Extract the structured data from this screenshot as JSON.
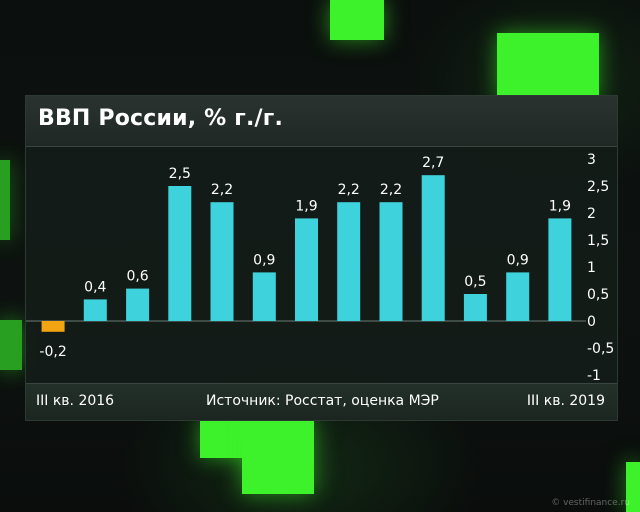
{
  "title": "ВВП России, % г./г.",
  "footer": {
    "left": "III кв. 2016",
    "center": "Источник: Росстат, оценка МЭР",
    "right": "III кв. 2019"
  },
  "watermark": "© vestifinance.ru",
  "chart_data": {
    "type": "bar",
    "categories": [
      "III кв. 2016",
      "",
      "",
      "",
      "",
      "",
      "",
      "",
      "",
      "",
      "",
      "",
      "III кв. 2019"
    ],
    "values": [
      -0.2,
      0.4,
      0.6,
      2.5,
      2.2,
      0.9,
      1.9,
      2.2,
      2.2,
      2.7,
      0.5,
      0.9,
      1.9
    ],
    "value_labels": [
      "-0,2",
      "0,4",
      "0,6",
      "2,5",
      "2,2",
      "0,9",
      "1,9",
      "2,2",
      "2,2",
      "2,7",
      "0,5",
      "0,9",
      "1,9"
    ],
    "ylim": [
      -1,
      3
    ],
    "yticks": [
      3,
      2.5,
      2,
      1.5,
      1,
      0.5,
      0,
      -0.5,
      -1
    ],
    "ytick_labels": [
      "3",
      "2,5",
      "2",
      "1,5",
      "1",
      "0,5",
      "0",
      "-0,5",
      "-1"
    ],
    "colors": {
      "positive": "#3ed3dc",
      "negative": "#f2a413",
      "text": "#ffffff"
    },
    "grid": false
  }
}
